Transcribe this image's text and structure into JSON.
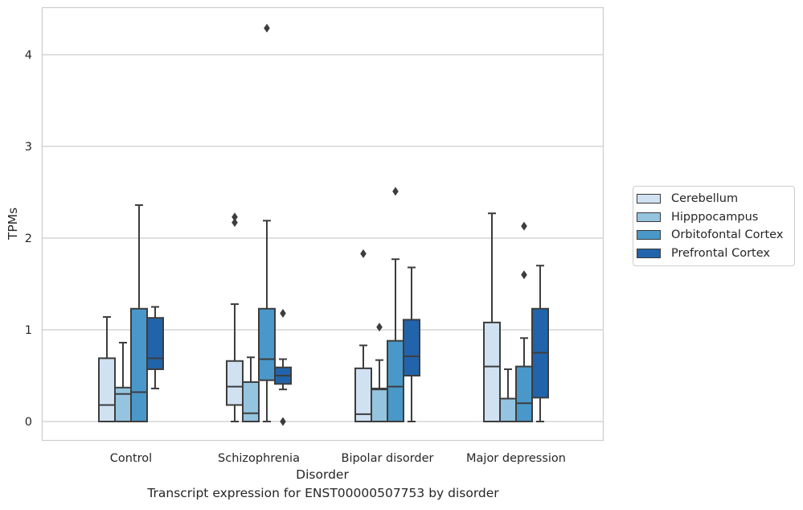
{
  "caption": "Transcript expression for ENST00000507753 by disorder",
  "chart_data": {
    "type": "box",
    "xlabel": "Disorder",
    "ylabel": "TPMs",
    "ylim": [
      -0.2,
      4.5
    ],
    "yticks": [
      0,
      1,
      2,
      3,
      4
    ],
    "grid": "horizontal",
    "legend_position": "right",
    "categories": [
      "Control",
      "Schizophrenia",
      "Bipolar disorder",
      "Major depression"
    ],
    "series": [
      {
        "name": "Cerebellum",
        "color": "#d0e1f2",
        "boxes": [
          {
            "whislo": 0,
            "q1": 0,
            "med": 0.18,
            "q3": 0.69,
            "whishi": 1.14,
            "fliers": []
          },
          {
            "whislo": 0,
            "q1": 0.18,
            "med": 0.38,
            "q3": 0.66,
            "whishi": 1.28,
            "fliers": [
              2.17,
              2.23
            ]
          },
          {
            "whislo": 0,
            "q1": 0,
            "med": 0.08,
            "q3": 0.58,
            "whishi": 0.83,
            "fliers": [
              1.83
            ]
          },
          {
            "whislo": 0,
            "q1": 0,
            "med": 0.6,
            "q3": 1.08,
            "whishi": 2.27,
            "fliers": []
          }
        ]
      },
      {
        "name": "Hipppocampus",
        "color": "#94c4df",
        "boxes": [
          {
            "whislo": 0,
            "q1": 0,
            "med": 0.3,
            "q3": 0.37,
            "whishi": 0.86,
            "fliers": []
          },
          {
            "whislo": 0,
            "q1": 0,
            "med": 0.09,
            "q3": 0.43,
            "whishi": 0.7,
            "fliers": []
          },
          {
            "whislo": 0,
            "q1": 0,
            "med": 0.35,
            "q3": 0.36,
            "whishi": 0.67,
            "fliers": [
              1.03
            ]
          },
          {
            "whislo": 0,
            "q1": 0,
            "med": 0.25,
            "q3": 0.25,
            "whishi": 0.57,
            "fliers": []
          }
        ]
      },
      {
        "name": "Orbitofontal Cortex",
        "color": "#4a98c9",
        "boxes": [
          {
            "whislo": 0,
            "q1": 0,
            "med": 0.32,
            "q3": 1.23,
            "whishi": 2.36,
            "fliers": []
          },
          {
            "whislo": 0,
            "q1": 0.45,
            "med": 0.68,
            "q3": 1.23,
            "whishi": 2.19,
            "fliers": [
              4.29
            ]
          },
          {
            "whislo": 0,
            "q1": 0,
            "med": 0.38,
            "q3": 0.88,
            "whishi": 1.77,
            "fliers": [
              2.51
            ]
          },
          {
            "whislo": 0,
            "q1": 0,
            "med": 0.2,
            "q3": 0.6,
            "whishi": 0.91,
            "fliers": [
              1.6,
              2.13
            ]
          }
        ]
      },
      {
        "name": "Prefrontal Cortex",
        "color": "#2164ab",
        "boxes": [
          {
            "whislo": 0.36,
            "q1": 0.57,
            "med": 0.69,
            "q3": 1.13,
            "whishi": 1.25,
            "fliers": []
          },
          {
            "whislo": 0.35,
            "q1": 0.41,
            "med": 0.5,
            "q3": 0.59,
            "whishi": 0.68,
            "fliers": [
              0,
              1.18
            ]
          },
          {
            "whislo": 0,
            "q1": 0.5,
            "med": 0.71,
            "q3": 1.11,
            "whishi": 1.68,
            "fliers": []
          },
          {
            "whislo": 0,
            "q1": 0.26,
            "med": 0.75,
            "q3": 1.23,
            "whishi": 1.7,
            "fliers": []
          }
        ]
      }
    ]
  }
}
